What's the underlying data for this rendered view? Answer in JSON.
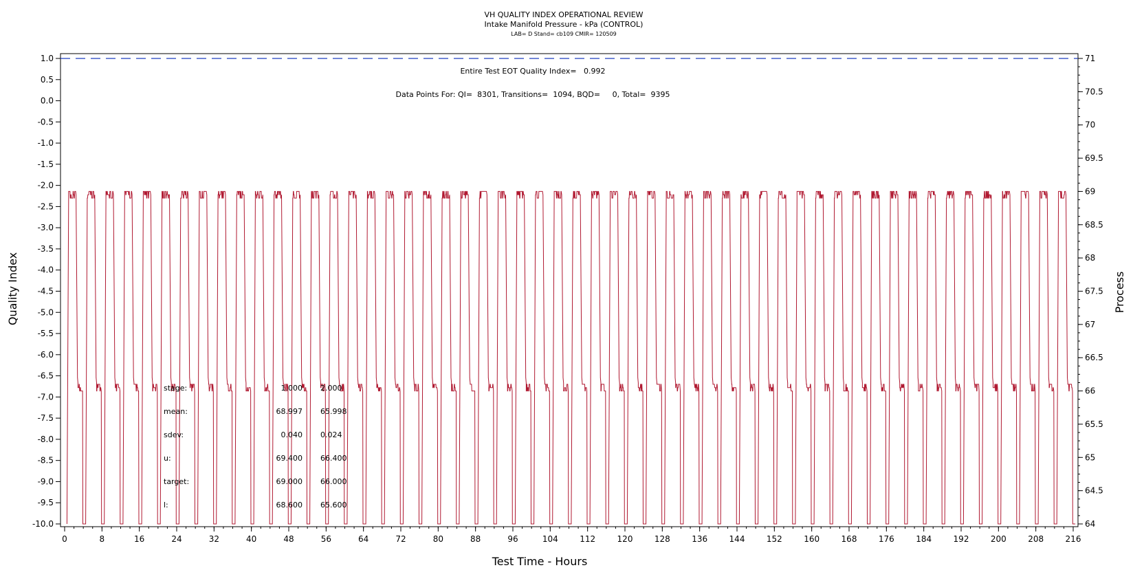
{
  "chart_data": {
    "type": "line",
    "title": "VH QUALITY INDEX OPERATIONAL REVIEW",
    "subtitle": "Intake Manifold Pressure - kPa (CONTROL)",
    "subsubtitle": "LAB= D Stand= cb109 CMIR= 120509",
    "xlabel": "Test Time - Hours",
    "ylabel": "Quality Index",
    "y2label": "Process",
    "xlim": [
      0,
      216
    ],
    "ylim": [
      -10,
      1
    ],
    "y2lim": [
      64,
      71
    ],
    "xticks": [
      "0",
      "8",
      "16",
      "24",
      "32",
      "40",
      "48",
      "56",
      "64",
      "72",
      "80",
      "88",
      "96",
      "104",
      "112",
      "120",
      "128",
      "136",
      "144",
      "152",
      "160",
      "168",
      "176",
      "184",
      "192",
      "200",
      "208",
      "216"
    ],
    "yticks": [
      "1.0",
      "0.5",
      "0.0",
      "-0.5",
      "-1.0",
      "-1.5",
      "-2.0",
      "-2.5",
      "-3.0",
      "-3.5",
      "-4.0",
      "-4.5",
      "-5.0",
      "-5.5",
      "-6.0",
      "-6.5",
      "-7.0",
      "-7.5",
      "-8.0",
      "-8.5",
      "-9.0",
      "-9.5",
      "-10.0"
    ],
    "y2ticks": [
      "71",
      "70.5",
      "70",
      "69.5",
      "69",
      "68.5",
      "68",
      "67.5",
      "67",
      "66.5",
      "66",
      "65.5",
      "65",
      "64.5",
      "64"
    ],
    "reference_line": {
      "y": 1.0,
      "style": "dashed",
      "color": "#1f3fbf"
    },
    "annotations": {
      "qi": "Entire Test EOT Quality Index=   0.992",
      "points": "Data Points For: QI=  8301, Transitions=  1094, BQD=     0, Total=  9395"
    },
    "series": [
      {
        "color": "#b01830",
        "cycle_hours": 4,
        "stage_1_level": 69.0,
        "stage_2_level": 66.0,
        "transition_level": 64.0,
        "x_start": 0.5,
        "x_end": 215
      }
    ],
    "stats": {
      "columns": [
        "1.000",
        "2.000"
      ],
      "rows": [
        {
          "label": "stage:",
          "v1": "1.000",
          "v2": "2.000"
        },
        {
          "label": "mean:",
          "v1": "68.997",
          "v2": "65.998"
        },
        {
          "label": "sdev:",
          "v1": "0.040",
          "v2": "0.024"
        },
        {
          "label": "u:",
          "v1": "69.400",
          "v2": "66.400"
        },
        {
          "label": "target:",
          "v1": "69.000",
          "v2": "66.000"
        },
        {
          "label": "l:",
          "v1": "68.600",
          "v2": "65.600"
        }
      ]
    },
    "grid": false,
    "legend": "none"
  }
}
